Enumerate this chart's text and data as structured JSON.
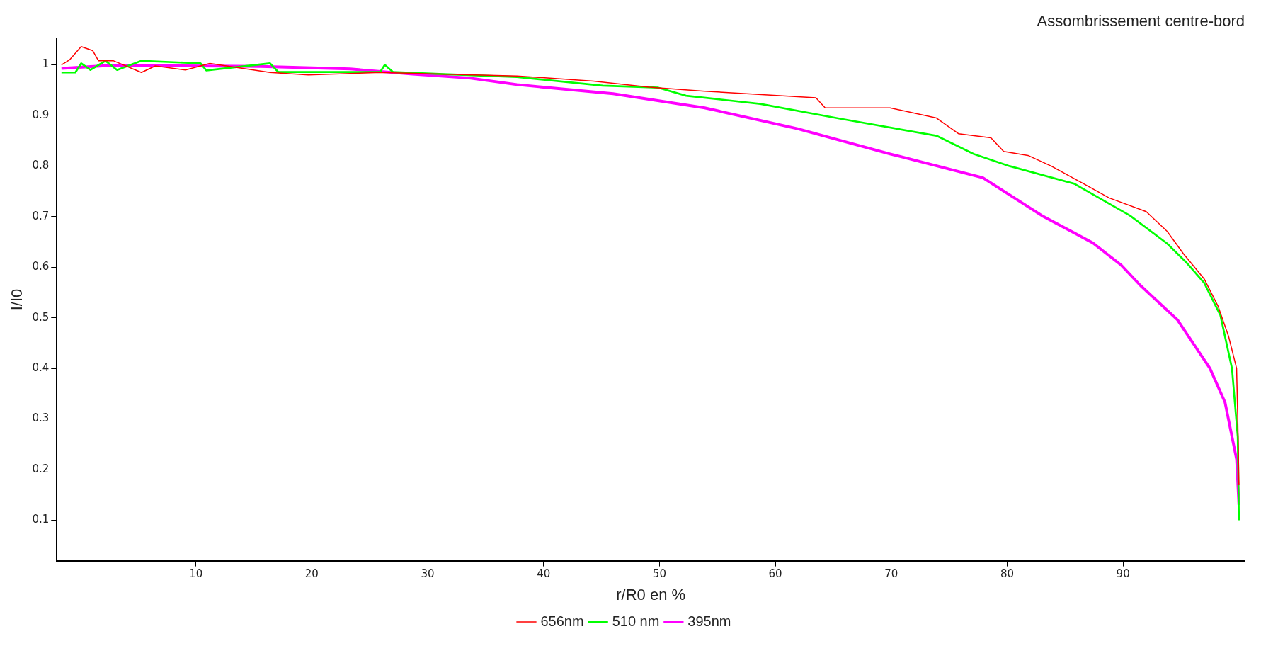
{
  "chart_data": {
    "type": "line",
    "title": "Assombrissement centre-bord",
    "xlabel": "r/R0 en %",
    "ylabel": "I/I0",
    "xlim": [
      -2,
      100.5
    ],
    "xticks": [
      10,
      20,
      30,
      40,
      50,
      60,
      70,
      80,
      90
    ],
    "ylim": [
      0.02,
      1.052
    ],
    "yticks": [
      0.1,
      0.2,
      0.3,
      0.4,
      0.5,
      0.6,
      0.7,
      0.8,
      0.9,
      1
    ],
    "grid": false,
    "legend": "bottom",
    "marker": "none",
    "line_style": "solid",
    "series": [
      {
        "name": "656nm",
        "color": "#ff0000",
        "x": [
          -1.6,
          -0.9,
          0.1,
          1.1,
          1.6,
          2.9,
          5.3,
          6.5,
          9.1,
          11.2,
          16.4,
          19.7,
          25.9,
          31,
          37.7,
          44.3,
          49.1,
          53.9,
          63.5,
          64.3,
          69.9,
          73.9,
          75.8,
          78.6,
          79.7,
          81.8,
          83.8,
          86.6,
          88.8,
          92,
          93.8,
          95.2,
          97,
          98.2,
          99.1,
          99.8,
          99.9,
          100
        ],
        "values": [
          1,
          1.01,
          1.036,
          1.028,
          1.008,
          1.008,
          0.985,
          0.998,
          0.99,
          1.003,
          0.985,
          0.98,
          0.985,
          0.982,
          0.978,
          0.968,
          0.956,
          0.948,
          0.935,
          0.915,
          0.915,
          0.895,
          0.864,
          0.856,
          0.829,
          0.821,
          0.8,
          0.765,
          0.737,
          0.71,
          0.671,
          0.627,
          0.577,
          0.523,
          0.464,
          0.4,
          0.3,
          0.17
        ]
      },
      {
        "name": "510 nm",
        "color": "#00ff00",
        "x": [
          -1.6,
          -0.4,
          0.1,
          0.9,
          2.2,
          3.2,
          5.3,
          10.4,
          10.9,
          16.4,
          17.1,
          25.9,
          26.3,
          27,
          31,
          37.7,
          45.1,
          49.9,
          52.3,
          58.7,
          65.5,
          73.9,
          77.1,
          80.2,
          85.8,
          90.6,
          93.8,
          95.4,
          97,
          98.4,
          99.4,
          99.9,
          100
        ],
        "values": [
          0.985,
          0.985,
          1.003,
          0.99,
          1.008,
          0.99,
          1.008,
          1.003,
          0.989,
          1.003,
          0.986,
          0.986,
          1,
          0.986,
          0.982,
          0.976,
          0.959,
          0.955,
          0.939,
          0.923,
          0.894,
          0.86,
          0.824,
          0.8,
          0.765,
          0.702,
          0.647,
          0.611,
          0.569,
          0.505,
          0.4,
          0.265,
          0.1
        ]
      },
      {
        "name": "395nm",
        "color": "#ff00ff",
        "x": [
          -1.6,
          2.7,
          15.6,
          23.3,
          28.5,
          33.6,
          37.7,
          46,
          53.9,
          61.9,
          69.9,
          77.9,
          83,
          87.4,
          89.8,
          91.5,
          94.7,
          97.5,
          98.8,
          99.8,
          100
        ],
        "values": [
          0.993,
          0.999,
          0.997,
          0.992,
          0.982,
          0.974,
          0.961,
          0.943,
          0.915,
          0.874,
          0.824,
          0.777,
          0.702,
          0.648,
          0.605,
          0.564,
          0.496,
          0.4,
          0.333,
          0.22,
          0.13
        ]
      }
    ]
  }
}
